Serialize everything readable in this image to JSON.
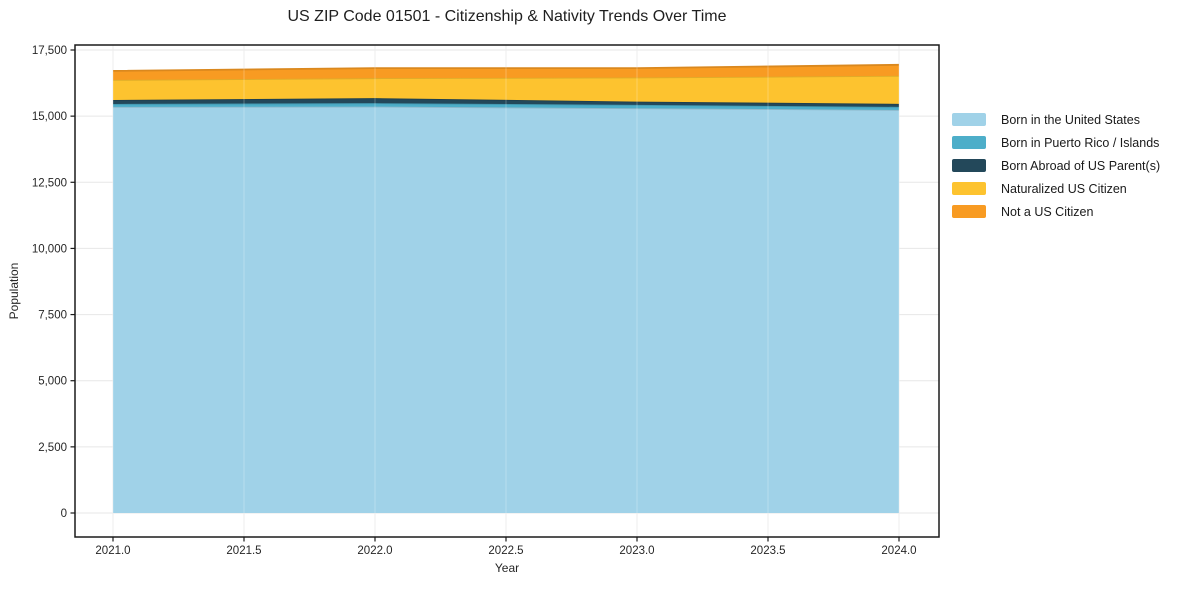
{
  "title": "US ZIP Code 01501 - Citizenship & Nativity Trends Over Time",
  "chart_data": {
    "type": "area",
    "stacked": true,
    "title": "US ZIP Code 01501 - Citizenship & Nativity Trends Over Time",
    "xlabel": "Year",
    "ylabel": "Population",
    "x": [
      2021,
      2022,
      2023,
      2024
    ],
    "series": [
      {
        "name": "Born in the United States",
        "color": "#a0d2e8",
        "values": [
          15350,
          15360,
          15300,
          15235
        ]
      },
      {
        "name": "Born in Puerto Rico / Islands",
        "color": "#4daec9",
        "values": [
          110,
          130,
          125,
          115
        ]
      },
      {
        "name": "Born Abroad of US Parent(s)",
        "color": "#23485a",
        "values": [
          150,
          190,
          125,
          115
        ]
      },
      {
        "name": "Naturalized US Citizen",
        "color": "#fdc32f",
        "values": [
          760,
          755,
          910,
          1060
        ]
      },
      {
        "name": "Not a US Citizen",
        "color": "#f89b22",
        "values": [
          340,
          380,
          355,
          415
        ]
      }
    ],
    "totals": [
      16710,
      16815,
      16815,
      16940
    ],
    "xlim": [
      2021,
      2024
    ],
    "ylim": [
      0,
      17500
    ],
    "x_tick_labels": [
      "2021.0",
      "2021.5",
      "2022.0",
      "2022.5",
      "2023.0",
      "2023.5",
      "2024.0"
    ],
    "x_tick_values": [
      2021,
      2021.5,
      2022,
      2022.5,
      2023,
      2023.5,
      2024
    ],
    "y_tick_labels": [
      "0",
      "2,500",
      "5,000",
      "7,500",
      "10,000",
      "12,500",
      "15,000",
      "17,500"
    ],
    "y_tick_values": [
      0,
      2500,
      5000,
      7500,
      10000,
      12500,
      15000,
      17500
    ],
    "grid": true,
    "grid_color": "#e7e7e7",
    "spine_color": "#1a1a1a",
    "legend_position": "right"
  }
}
